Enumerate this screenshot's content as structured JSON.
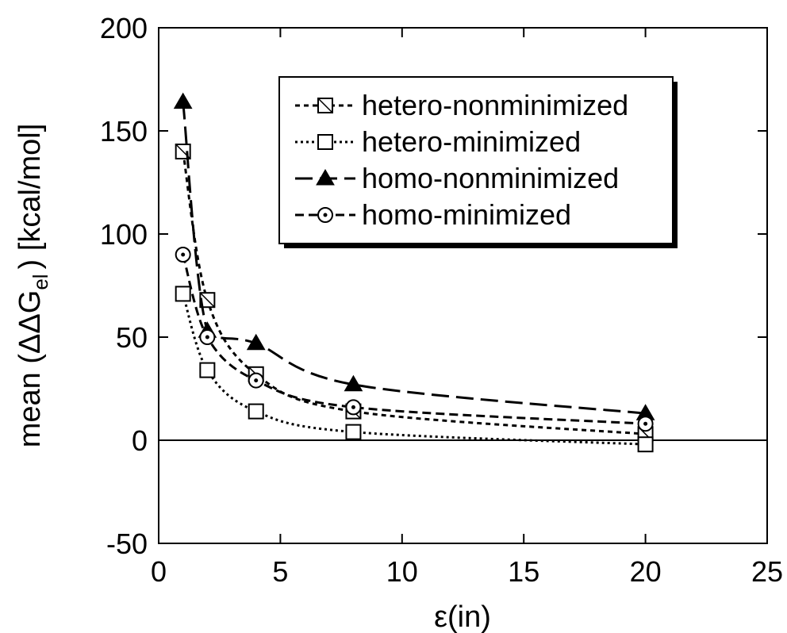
{
  "chart_data": {
    "type": "line",
    "title": "",
    "xlabel": "ε(in)",
    "ylabel": {
      "prefix": "mean (ΔΔG",
      "subscript": "el",
      "suffix": ") [kcal/mol]"
    },
    "xlim": [
      0,
      25
    ],
    "ylim": [
      -50,
      200
    ],
    "xticks": [
      "0",
      "5",
      "10",
      "15",
      "20",
      "25"
    ],
    "yticks": [
      "-50",
      "0",
      "50",
      "100",
      "150",
      "200"
    ],
    "grid": false,
    "zero_line": true,
    "legend_position": "top-right",
    "series": [
      {
        "name": "hetero-nonminimized",
        "marker": "square-slash",
        "line": "short-dash",
        "x": [
          1,
          2,
          4,
          8,
          20
        ],
        "y": [
          140,
          68,
          32,
          14,
          3
        ]
      },
      {
        "name": "hetero-minimized",
        "marker": "square-open",
        "line": "dotted",
        "x": [
          1,
          2,
          4,
          8,
          20
        ],
        "y": [
          71,
          34,
          14,
          4,
          -2
        ]
      },
      {
        "name": "homo-nonminimized",
        "marker": "triangle-filled",
        "line": "long-dash",
        "x": [
          1,
          2,
          4,
          8,
          20
        ],
        "y": [
          164,
          53,
          47,
          27,
          13
        ]
      },
      {
        "name": "homo-minimized",
        "marker": "circle-dot",
        "line": "medium-dash",
        "x": [
          1,
          2,
          4,
          8,
          20
        ],
        "y": [
          90,
          50,
          29,
          16,
          8
        ]
      }
    ]
  }
}
